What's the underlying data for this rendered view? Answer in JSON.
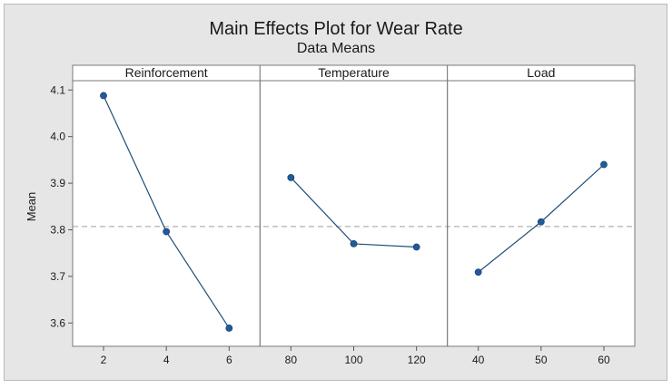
{
  "chart_data": {
    "type": "line",
    "title": "Main Effects Plot for Wear Rate",
    "subtitle": "Data Means",
    "ylabel": "Mean",
    "ylim": [
      3.55,
      4.12
    ],
    "yticks": [
      "3.6",
      "3.7",
      "3.8",
      "3.9",
      "4.0",
      "4.1"
    ],
    "yticks_values": [
      3.6,
      3.7,
      3.8,
      3.9,
      4.0,
      4.1
    ],
    "overall_mean": 3.807,
    "reference_line": "dashed",
    "panels": [
      {
        "label": "Reinforcement",
        "x": [
          "2",
          "4",
          "6"
        ],
        "values": [
          4.088,
          3.796,
          3.589
        ]
      },
      {
        "label": "Temperature",
        "x": [
          "80",
          "100",
          "120"
        ],
        "values": [
          3.912,
          3.77,
          3.763
        ]
      },
      {
        "label": "Load",
        "x": [
          "40",
          "50",
          "60"
        ],
        "values": [
          3.709,
          3.817,
          3.94
        ]
      }
    ],
    "colors": {
      "line": "#1f4e79",
      "marker": "#1f5a9c",
      "reference": "#a0a0a0",
      "background": "#e6e6e6",
      "panel": "#ffffff"
    },
    "grid": false,
    "legend": "none"
  }
}
